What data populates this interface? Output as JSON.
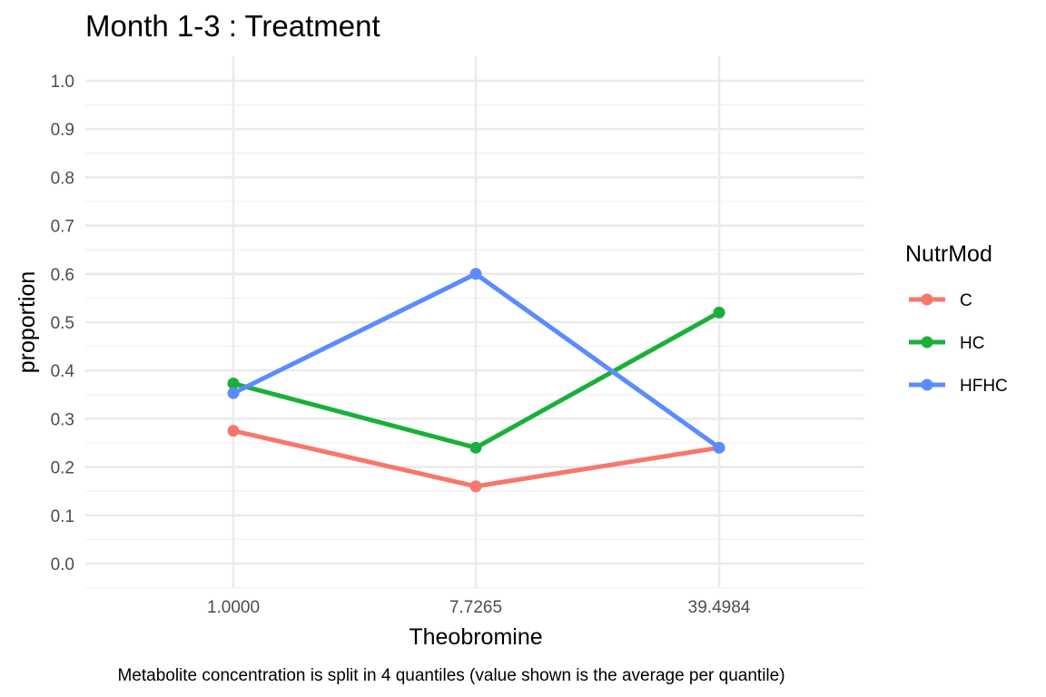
{
  "chart_data": {
    "type": "line",
    "title": "Month 1-3 : Treatment",
    "xlabel": "Theobromine",
    "ylabel": "proportion",
    "caption": "Metabolite concentration is split in 4 quantiles (value shown is the average per quantile)",
    "categories": [
      "1.0000",
      "7.7265",
      "39.4984"
    ],
    "ylim": [
      0,
      1
    ],
    "yticks": [
      "0.0",
      "0.1",
      "0.2",
      "0.3",
      "0.4",
      "0.5",
      "0.6",
      "0.7",
      "0.8",
      "0.9",
      "1.0"
    ],
    "legend": {
      "title": "NutrMod",
      "placement": "right"
    },
    "grid": true,
    "series": [
      {
        "name": "C",
        "color": "#F8766D",
        "values": [
          0.275,
          0.16,
          0.24
        ]
      },
      {
        "name": "HC",
        "color": "#1AAF3B",
        "values": [
          0.373,
          0.24,
          0.52
        ]
      },
      {
        "name": "HFHC",
        "color": "#5B8CFF",
        "values": [
          0.353,
          0.6,
          0.24
        ]
      }
    ]
  }
}
